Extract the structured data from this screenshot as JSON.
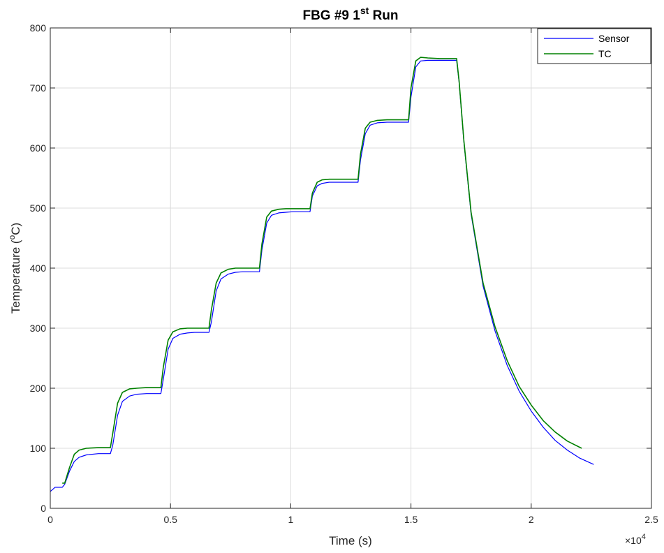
{
  "chart_data": {
    "type": "line",
    "title": {
      "main": "FBG #9 1",
      "superscript": "st",
      "suffix": " Run"
    },
    "xlabel": "Time (s)",
    "ylabel": {
      "prefix": "Temperature (",
      "superscript": "o",
      "suffix": "C)"
    },
    "x_exponent": {
      "base": "×10",
      "power": "4"
    },
    "xlim": [
      0,
      2.5
    ],
    "ylim": [
      0,
      800
    ],
    "x_ticks": [
      0,
      0.5,
      1,
      1.5,
      2,
      2.5
    ],
    "x_tick_labels": [
      "0",
      "0.5",
      "1",
      "1.5",
      "2",
      "2.5"
    ],
    "y_ticks": [
      0,
      100,
      200,
      300,
      400,
      500,
      600,
      700,
      800
    ],
    "y_tick_labels": [
      "0",
      "100",
      "200",
      "300",
      "400",
      "500",
      "600",
      "700",
      "800"
    ],
    "grid": true,
    "legend_position": "top-right",
    "series": [
      {
        "name": "Sensor",
        "color": "#0000ff",
        "x": [
          0,
          0.02,
          0.05,
          0.06,
          0.08,
          0.1,
          0.12,
          0.15,
          0.2,
          0.25,
          0.26,
          0.28,
          0.3,
          0.33,
          0.36,
          0.4,
          0.46,
          0.47,
          0.49,
          0.51,
          0.54,
          0.57,
          0.6,
          0.66,
          0.67,
          0.69,
          0.71,
          0.74,
          0.77,
          0.8,
          0.87,
          0.88,
          0.9,
          0.92,
          0.95,
          0.98,
          1.01,
          1.08,
          1.09,
          1.11,
          1.13,
          1.16,
          1.2,
          1.28,
          1.29,
          1.31,
          1.33,
          1.36,
          1.4,
          1.49,
          1.5,
          1.52,
          1.54,
          1.57,
          1.62,
          1.69,
          1.7,
          1.72,
          1.75,
          1.8,
          1.85,
          1.9,
          1.95,
          2.0,
          2.05,
          2.1,
          2.15,
          2.2,
          2.26
        ],
        "y": [
          28,
          35,
          35,
          40,
          62,
          78,
          85,
          89,
          91,
          91,
          105,
          155,
          178,
          187,
          190,
          191,
          191,
          215,
          265,
          283,
          290,
          292,
          293,
          293,
          310,
          362,
          382,
          390,
          393,
          394,
          394,
          430,
          475,
          488,
          492,
          493,
          494,
          494,
          520,
          537,
          541,
          543,
          543,
          543,
          580,
          624,
          638,
          642,
          643,
          643,
          685,
          735,
          745,
          746,
          746,
          746,
          710,
          610,
          490,
          370,
          295,
          238,
          195,
          162,
          135,
          113,
          97,
          84,
          73
        ]
      },
      {
        "name": "TC",
        "color": "#008000",
        "x": [
          0.05,
          0.06,
          0.08,
          0.1,
          0.12,
          0.15,
          0.2,
          0.25,
          0.26,
          0.28,
          0.3,
          0.33,
          0.36,
          0.4,
          0.46,
          0.47,
          0.49,
          0.51,
          0.54,
          0.57,
          0.6,
          0.66,
          0.67,
          0.69,
          0.71,
          0.74,
          0.77,
          0.8,
          0.87,
          0.88,
          0.9,
          0.92,
          0.95,
          0.98,
          1.01,
          1.08,
          1.09,
          1.11,
          1.13,
          1.16,
          1.2,
          1.28,
          1.29,
          1.31,
          1.33,
          1.36,
          1.4,
          1.49,
          1.5,
          1.52,
          1.54,
          1.57,
          1.62,
          1.69,
          1.7,
          1.72,
          1.75,
          1.8,
          1.85,
          1.9,
          1.95,
          2.0,
          2.05,
          2.1,
          2.15,
          2.21
        ],
        "y": [
          42,
          42,
          68,
          90,
          97,
          100,
          101,
          101,
          125,
          175,
          193,
          199,
          200,
          201,
          201,
          235,
          280,
          294,
          299,
          300,
          300,
          300,
          330,
          375,
          392,
          398,
          400,
          400,
          400,
          440,
          485,
          495,
          498,
          499,
          499,
          499,
          525,
          543,
          547,
          548,
          548,
          548,
          590,
          633,
          643,
          646,
          647,
          647,
          700,
          745,
          751,
          750,
          749,
          749,
          712,
          612,
          493,
          375,
          302,
          246,
          203,
          172,
          146,
          127,
          112,
          100
        ]
      }
    ]
  }
}
